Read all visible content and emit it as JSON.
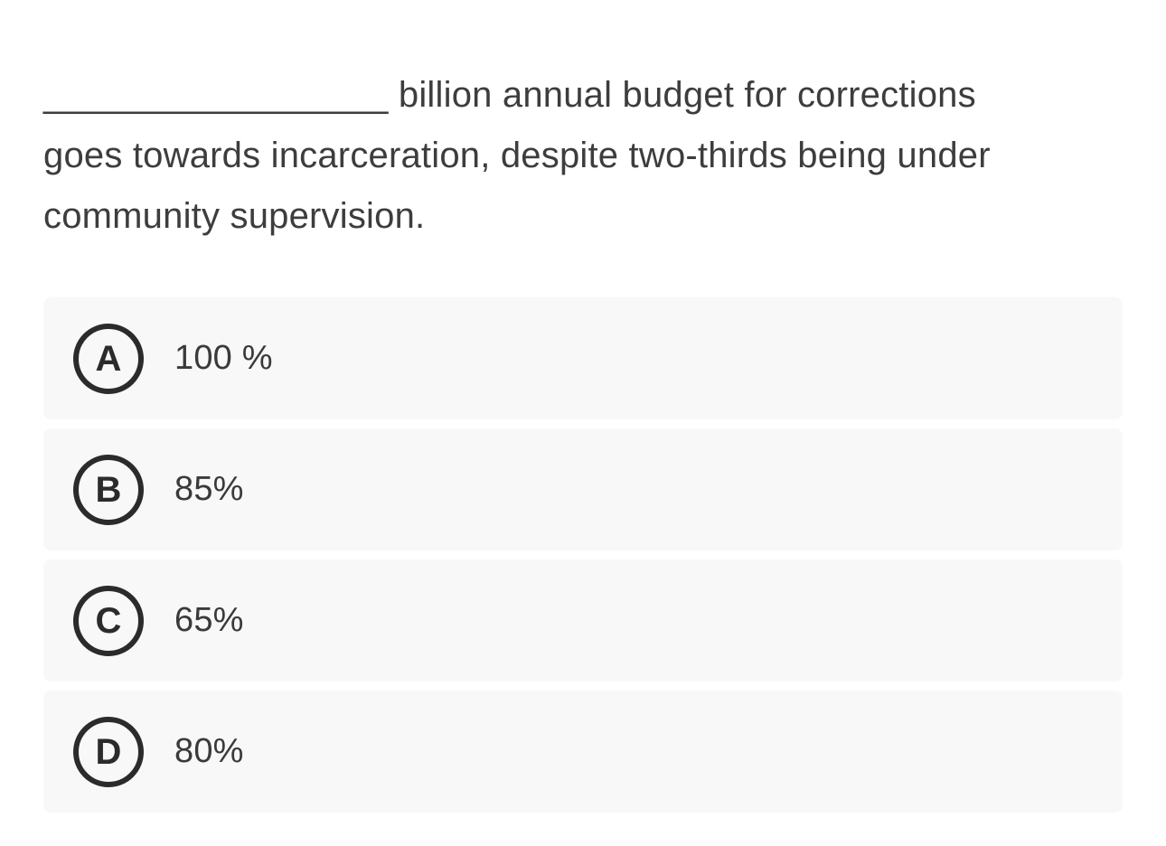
{
  "question": {
    "lines": [
      "_________________ billion annual budget for corrections",
      "goes towards incarceration, despite two-thirds being under",
      "community supervision."
    ],
    "full_text": "_________________ billion annual budget for corrections goes towards incarceration, despite two-thirds being under community supervision."
  },
  "options": [
    {
      "letter": "A",
      "label": "100 %"
    },
    {
      "letter": "B",
      "label": "85%"
    },
    {
      "letter": "C",
      "label": "65%"
    },
    {
      "letter": "D",
      "label": "80%"
    }
  ],
  "colors": {
    "page_background": "#ffffff",
    "question_text": "#3d3d3d",
    "option_card_background": "#f8f8f8",
    "option_text": "#3a3a3a",
    "badge_stroke": "#2b2b2b"
  }
}
